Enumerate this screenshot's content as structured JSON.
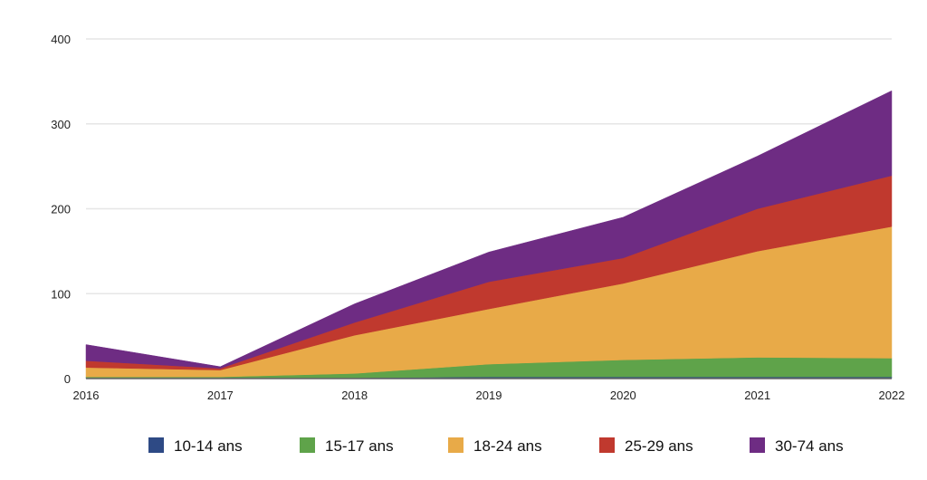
{
  "chart_data": {
    "type": "area",
    "stacked": true,
    "x": [
      "2016",
      "2017",
      "2018",
      "2019",
      "2020",
      "2021",
      "2022"
    ],
    "ylim": [
      0,
      400
    ],
    "yticks": [
      "0",
      "100",
      "200",
      "300",
      "400"
    ],
    "grid": true,
    "legend_position": "bottom",
    "series": [
      {
        "name": "10-14 ans",
        "color": "#2e4a85",
        "values": [
          1,
          1,
          1,
          2,
          2,
          2,
          2
        ]
      },
      {
        "name": "15-17 ans",
        "color": "#5fa34a",
        "values": [
          1,
          1,
          5,
          15,
          20,
          23,
          22
        ]
      },
      {
        "name": "18-24 ans",
        "color": "#e8aa48",
        "values": [
          11,
          8,
          45,
          65,
          90,
          125,
          155
        ]
      },
      {
        "name": "25-29 ans",
        "color": "#c0392e",
        "values": [
          8,
          2,
          15,
          32,
          30,
          50,
          60
        ]
      },
      {
        "name": "30-74 ans",
        "color": "#6e2c83",
        "values": [
          19,
          2,
          22,
          35,
          48,
          62,
          100
        ]
      }
    ]
  }
}
